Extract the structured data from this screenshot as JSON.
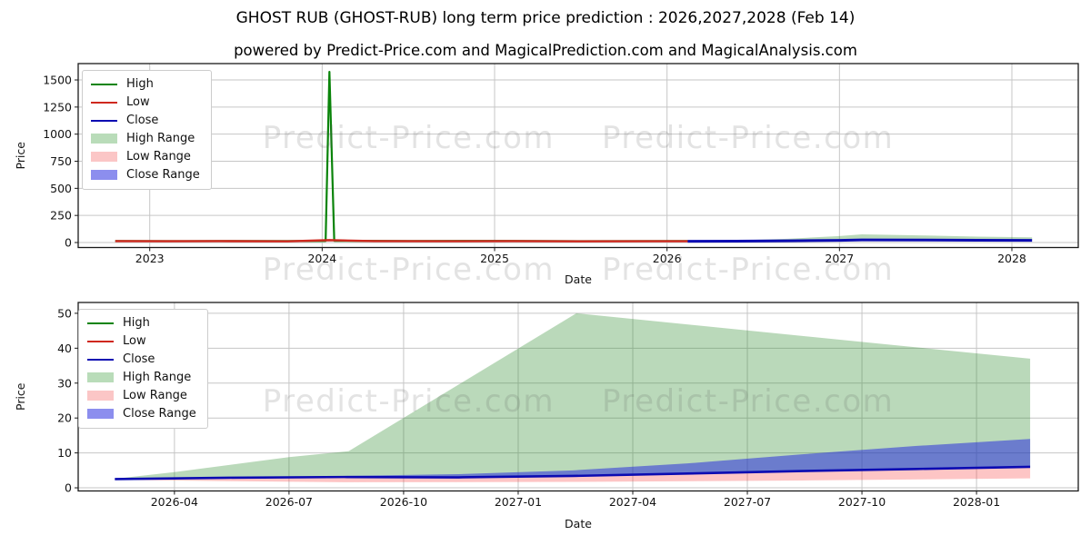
{
  "header": {
    "title": "GHOST RUB (GHOST-RUB) long term price prediction : 2026,2027,2028 (Feb 14)",
    "subtitle": "powered by Predict-Price.com and MagicalPrediction.com and MagicalAnalysis.com"
  },
  "watermark": {
    "text": "Predict-Price.com"
  },
  "legend": {
    "items": [
      {
        "label": "High",
        "swatch": "line",
        "color": "#0a840a"
      },
      {
        "label": "Low",
        "swatch": "line",
        "color": "#cf281e"
      },
      {
        "label": "Close",
        "swatch": "line",
        "color": "#0b0bb2"
      },
      {
        "label": "High Range",
        "swatch": "patch",
        "color": "#b9dcb9"
      },
      {
        "label": "Low Range",
        "swatch": "patch",
        "color": "#fbc6c6"
      },
      {
        "label": "Close Range",
        "swatch": "patch",
        "color": "#8c8eee"
      }
    ]
  },
  "chart_data": [
    {
      "type": "line",
      "name": "long-term-history-and-prediction",
      "xlabel": "Date",
      "ylabel": "Price",
      "grid": true,
      "legend_position": "upper-left",
      "x_axis": {
        "domain": [
          2022.585,
          2028.385
        ],
        "ticks": [
          {
            "v": 2023,
            "label": "2023"
          },
          {
            "v": 2024,
            "label": "2024"
          },
          {
            "v": 2025,
            "label": "2025"
          },
          {
            "v": 2026,
            "label": "2026"
          },
          {
            "v": 2027,
            "label": "2027"
          },
          {
            "v": 2028,
            "label": "2028"
          }
        ]
      },
      "y_axis": {
        "domain": [
          -46,
          1651
        ],
        "ticks": [
          {
            "v": 0,
            "label": "0"
          },
          {
            "v": 250,
            "label": "250"
          },
          {
            "v": 500,
            "label": "500"
          },
          {
            "v": 750,
            "label": "750"
          },
          {
            "v": 1000,
            "label": "1000"
          },
          {
            "v": 1250,
            "label": "1250"
          },
          {
            "v": 1500,
            "label": "1500"
          }
        ]
      },
      "series": {
        "high": {
          "x": [
            2022.8,
            2023.2,
            2023.6,
            2024.02,
            2024.042,
            2024.07,
            2024.5,
            2025.0,
            2025.5,
            2026.12
          ],
          "y": [
            14,
            13,
            14,
            15,
            1575,
            16,
            14,
            15,
            13,
            14
          ]
        },
        "low": {
          "x": [
            2022.8,
            2023.1,
            2023.4,
            2023.8,
            2024.042,
            2024.3,
            2024.7,
            2025.1,
            2025.5,
            2025.9,
            2026.12
          ],
          "y": [
            13,
            12,
            13,
            11,
            22,
            13,
            12,
            13,
            11,
            12,
            12
          ]
        },
        "close": {
          "x": [
            2026.12,
            2026.4,
            2026.7,
            2027.0,
            2027.13,
            2027.5,
            2027.8,
            2028.117
          ],
          "y": [
            12,
            13,
            16,
            20,
            24,
            23,
            21,
            20
          ]
        },
        "high_range_upper": {
          "x": [
            2026.12,
            2026.4,
            2026.7,
            2027.0,
            2027.13,
            2027.5,
            2027.8,
            2028.117
          ],
          "y": [
            14,
            20,
            35,
            60,
            75,
            65,
            55,
            48
          ]
        }
      },
      "bands": [
        {
          "upper": "high_range_upper",
          "lower": "close",
          "color": "rgba(46,139,46,0.33)",
          "name": "high-range"
        }
      ],
      "lines": [
        {
          "series": "high",
          "color": "#0a840a",
          "width": 2.2
        },
        {
          "series": "low",
          "color": "#cf281e",
          "width": 2.4
        },
        {
          "series": "close",
          "color": "#0b0bb2",
          "width": 3
        }
      ]
    },
    {
      "type": "line",
      "name": "prediction-detail",
      "xlabel": "Date",
      "ylabel": "Price",
      "grid": true,
      "legend_position": "upper-left",
      "x_axis": {
        "domain": [
          2026.04,
          2028.222
        ],
        "ticks": [
          {
            "v": 2026.25,
            "label": "2026-04"
          },
          {
            "v": 2026.5,
            "label": "2026-07"
          },
          {
            "v": 2026.75,
            "label": "2026-10"
          },
          {
            "v": 2027.0,
            "label": "2027-01"
          },
          {
            "v": 2027.25,
            "label": "2027-04"
          },
          {
            "v": 2027.5,
            "label": "2027-07"
          },
          {
            "v": 2027.75,
            "label": "2027-10"
          },
          {
            "v": 2028.0,
            "label": "2028-01"
          }
        ]
      },
      "y_axis": {
        "domain": [
          -0.9,
          53.1
        ],
        "ticks": [
          {
            "v": 0,
            "label": "0"
          },
          {
            "v": 10,
            "label": "10"
          },
          {
            "v": 20,
            "label": "20"
          },
          {
            "v": 30,
            "label": "30"
          },
          {
            "v": 40,
            "label": "40"
          },
          {
            "v": 50,
            "label": "50"
          }
        ]
      },
      "series": {
        "close": {
          "x": [
            2026.12,
            2026.37,
            2026.62,
            2026.87,
            2027.12,
            2027.37,
            2027.62,
            2027.87,
            2028.117
          ],
          "y": [
            2.5,
            2.9,
            3.1,
            3.0,
            3.4,
            4.1,
            4.8,
            5.4,
            6.0
          ]
        },
        "high_range_upper": {
          "x": [
            2026.12,
            2026.25,
            2026.5,
            2026.63,
            2027.127,
            2027.62,
            2028.117
          ],
          "y": [
            2.6,
            4.5,
            8.8,
            10.5,
            50,
            43.5,
            37
          ]
        },
        "close_range_upper": {
          "x": [
            2026.12,
            2026.62,
            2026.87,
            2027.12,
            2027.37,
            2027.62,
            2027.87,
            2028.117
          ],
          "y": [
            2.6,
            3.4,
            3.9,
            5.0,
            7.0,
            9.6,
            12.0,
            14.0
          ]
        },
        "low_range_lower": {
          "x": [
            2026.12,
            2026.37,
            2026.62,
            2027.12,
            2027.62,
            2028.117
          ],
          "y": [
            2.3,
            1.9,
            1.6,
            1.7,
            2.1,
            2.7
          ]
        }
      },
      "bands": [
        {
          "upper": "high_range_upper",
          "lower": "close",
          "color": "rgba(46,139,46,0.33)",
          "name": "high-range"
        },
        {
          "upper": "close_range_upper",
          "lower": "close",
          "color": "rgba(35,38,222,0.52)",
          "name": "close-range"
        },
        {
          "upper": "close",
          "lower": "low_range_lower",
          "color": "rgba(248,63,63,0.30)",
          "name": "low-range"
        }
      ],
      "lines": [
        {
          "series": "close",
          "color": "#0b0bb2",
          "width": 2.6
        }
      ]
    }
  ]
}
